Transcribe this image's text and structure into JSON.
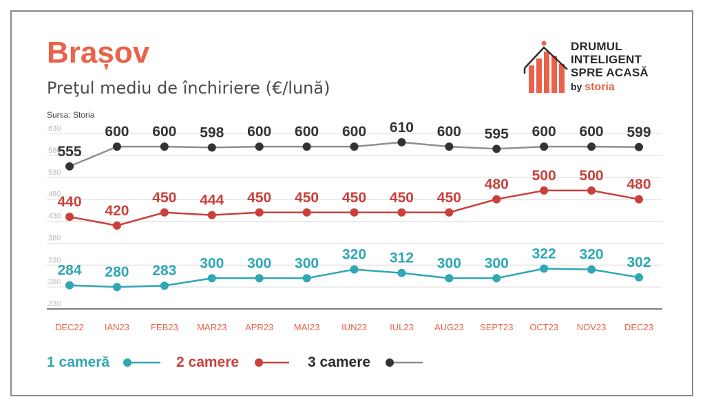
{
  "header": {
    "title": "Brașov",
    "subtitle": "Preţul mediu de închiriere (€/lună)",
    "source": "Sursa: Storia"
  },
  "logo": {
    "line1": "DRUMUL",
    "line2": "INTELIGENT",
    "line3": "SPRE ACASĂ",
    "by": "by",
    "brand": "storia"
  },
  "colors": {
    "title": "#ea6249",
    "tick_label": "#ea6249",
    "one_room": "#2fa7b4",
    "two_rooms": "#c9413a",
    "three_rooms": "#8e8e8e",
    "three_rooms_marker": "#333333",
    "grid": "#dcdcdc"
  },
  "chart_data": {
    "type": "line",
    "title": "Brașov",
    "subtitle": "Preţul mediu de închiriere (€/lună)",
    "categories": [
      "DEC22",
      "IAN23",
      "FEB23",
      "MAR23",
      "APR23",
      "MAI23",
      "IUN23",
      "IUL23",
      "AUG23",
      "SEPT23",
      "OCT23",
      "NOV23",
      "DEC23"
    ],
    "ylim": [
      230,
      630
    ],
    "yticks": [
      630,
      580,
      530,
      480,
      430,
      380,
      330,
      280,
      230
    ],
    "grid": true,
    "legend_position": "bottom-left",
    "series": [
      {
        "name": "1 cameră",
        "key": "one_room",
        "values": [
          284,
          280,
          283,
          300,
          300,
          300,
          320,
          312,
          300,
          300,
          322,
          320,
          302
        ]
      },
      {
        "name": "2 camere",
        "key": "two_rooms",
        "values": [
          440,
          420,
          450,
          444,
          450,
          450,
          450,
          450,
          450,
          480,
          500,
          500,
          480
        ]
      },
      {
        "name": "3 camere",
        "key": "three_rooms",
        "values": [
          555,
          600,
          600,
          598,
          600,
          600,
          600,
          610,
          600,
          595,
          600,
          600,
          599
        ]
      }
    ]
  }
}
